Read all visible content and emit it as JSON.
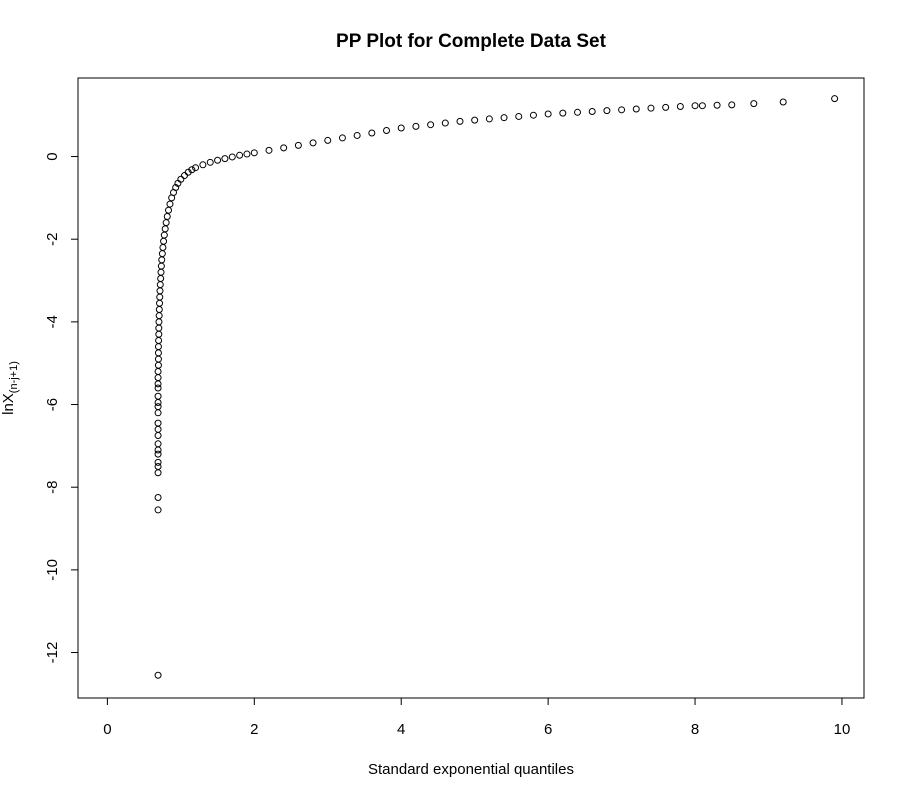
{
  "chart_data": {
    "type": "scatter",
    "title": "PP Plot for Complete Data Set",
    "xlabel": "Standard exponential quantiles",
    "ylabel_main": "lnX",
    "ylabel_subscript": "(n-j+1)",
    "xlim": [
      -0.4,
      10.3
    ],
    "ylim": [
      -13.1,
      1.9
    ],
    "x_ticks": [
      0,
      2,
      4,
      6,
      8,
      10
    ],
    "y_ticks": [
      0,
      -2,
      -4,
      -6,
      -8,
      -10,
      -12
    ],
    "marker": "open-circle",
    "grid": false,
    "legend": "none",
    "series": [
      {
        "points": [
          [
            0.69,
            -12.55
          ],
          [
            0.69,
            -8.55
          ],
          [
            0.69,
            -8.25
          ],
          [
            0.69,
            -7.65
          ],
          [
            0.69,
            -7.5
          ],
          [
            0.69,
            -7.4
          ],
          [
            0.69,
            -7.2
          ],
          [
            0.69,
            -7.1
          ],
          [
            0.69,
            -6.95
          ],
          [
            0.69,
            -6.75
          ],
          [
            0.69,
            -6.6
          ],
          [
            0.69,
            -6.45
          ],
          [
            0.69,
            -6.2
          ],
          [
            0.69,
            -6.05
          ],
          [
            0.69,
            -5.95
          ],
          [
            0.69,
            -5.8
          ],
          [
            0.69,
            -5.6
          ],
          [
            0.69,
            -5.5
          ],
          [
            0.69,
            -5.35
          ],
          [
            0.69,
            -5.2
          ],
          [
            0.695,
            -5.05
          ],
          [
            0.695,
            -4.9
          ],
          [
            0.695,
            -4.75
          ],
          [
            0.695,
            -4.6
          ],
          [
            0.697,
            -4.45
          ],
          [
            0.7,
            -4.3
          ],
          [
            0.7,
            -4.15
          ],
          [
            0.702,
            -4.0
          ],
          [
            0.705,
            -3.85
          ],
          [
            0.707,
            -3.7
          ],
          [
            0.71,
            -3.55
          ],
          [
            0.713,
            -3.4
          ],
          [
            0.716,
            -3.25
          ],
          [
            0.72,
            -3.1
          ],
          [
            0.725,
            -2.95
          ],
          [
            0.73,
            -2.8
          ],
          [
            0.735,
            -2.65
          ],
          [
            0.74,
            -2.5
          ],
          [
            0.748,
            -2.35
          ],
          [
            0.756,
            -2.2
          ],
          [
            0.765,
            -2.05
          ],
          [
            0.775,
            -1.9
          ],
          [
            0.787,
            -1.75
          ],
          [
            0.8,
            -1.6
          ],
          [
            0.815,
            -1.45
          ],
          [
            0.832,
            -1.3
          ],
          [
            0.852,
            -1.15
          ],
          [
            0.875,
            -1.0
          ],
          [
            0.9,
            -0.87
          ],
          [
            0.93,
            -0.75
          ],
          [
            0.96,
            -0.65
          ],
          [
            1.0,
            -0.55
          ],
          [
            1.05,
            -0.46
          ],
          [
            1.1,
            -0.38
          ],
          [
            1.15,
            -0.32
          ],
          [
            1.2,
            -0.27
          ],
          [
            1.3,
            -0.2
          ],
          [
            1.4,
            -0.14
          ],
          [
            1.5,
            -0.09
          ],
          [
            1.6,
            -0.05
          ],
          [
            1.7,
            -0.01
          ],
          [
            1.8,
            0.03
          ],
          [
            1.9,
            0.06
          ],
          [
            2.0,
            0.09
          ],
          [
            2.2,
            0.15
          ],
          [
            2.4,
            0.21
          ],
          [
            2.6,
            0.27
          ],
          [
            2.8,
            0.33
          ],
          [
            3.0,
            0.39
          ],
          [
            3.2,
            0.45
          ],
          [
            3.4,
            0.51
          ],
          [
            3.6,
            0.57
          ],
          [
            3.8,
            0.63
          ],
          [
            4.0,
            0.69
          ],
          [
            4.2,
            0.73
          ],
          [
            4.4,
            0.77
          ],
          [
            4.6,
            0.81
          ],
          [
            4.8,
            0.85
          ],
          [
            5.0,
            0.88
          ],
          [
            5.2,
            0.91
          ],
          [
            5.4,
            0.94
          ],
          [
            5.6,
            0.97
          ],
          [
            5.8,
            1.0
          ],
          [
            6.0,
            1.03
          ],
          [
            6.2,
            1.05
          ],
          [
            6.4,
            1.07
          ],
          [
            6.6,
            1.09
          ],
          [
            6.8,
            1.11
          ],
          [
            7.0,
            1.13
          ],
          [
            7.2,
            1.15
          ],
          [
            7.4,
            1.17
          ],
          [
            7.6,
            1.19
          ],
          [
            7.8,
            1.21
          ],
          [
            8.0,
            1.23
          ],
          [
            8.1,
            1.23
          ],
          [
            8.3,
            1.24
          ],
          [
            8.5,
            1.25
          ],
          [
            8.8,
            1.28
          ],
          [
            9.2,
            1.32
          ],
          [
            9.9,
            1.4
          ]
        ]
      }
    ]
  }
}
